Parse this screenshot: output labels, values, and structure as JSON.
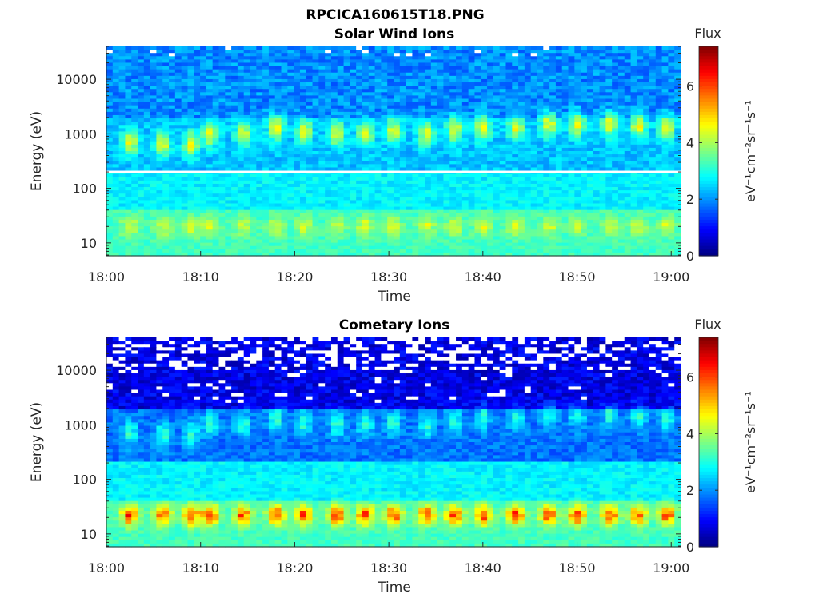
{
  "figure": {
    "title": "RPCICA160615T18.PNG"
  },
  "chart_data": [
    {
      "type": "heatmap",
      "title": "Solar Wind Ions",
      "xlabel": "Time",
      "ylabel": "Energy (eV)",
      "xticks": [
        "18:00",
        "18:10",
        "18:20",
        "18:30",
        "18:40",
        "18:50",
        "19:00"
      ],
      "yticks": [
        "10",
        "100",
        "1000",
        "10000"
      ],
      "yscale": "log",
      "xlim": [
        "18:00",
        "19:01"
      ],
      "ylim": [
        5.8,
        40000
      ],
      "colorbar": {
        "title": "Flux",
        "label": "eV⁻¹cm⁻²sr⁻¹s⁻¹",
        "ticks": [
          "0",
          "2",
          "4",
          "6"
        ],
        "range": [
          0,
          7.4
        ],
        "colormap": "jet"
      },
      "bursts_time_min": [
        2.5,
        6,
        9,
        11,
        14.5,
        18,
        21,
        24.5,
        27.5,
        30.5,
        34,
        37,
        40,
        43.5,
        47,
        50,
        53.5,
        56.5,
        59.5
      ],
      "bursts_energy_ev": [
        700,
        650,
        650,
        1000,
        1000,
        1300,
        1100,
        1000,
        1000,
        1100,
        1000,
        1200,
        1300,
        1300,
        1500,
        1500,
        1500,
        1400,
        1300
      ],
      "low_energy_peak_ev": 20,
      "low_energy_peak_flux": 4.3,
      "background_flux_high_energy": 1.5,
      "gap_energy_ev": 200
    },
    {
      "type": "heatmap",
      "title": "Cometary Ions",
      "xlabel": "Time",
      "ylabel": "Energy (eV)",
      "xticks": [
        "18:00",
        "18:10",
        "18:20",
        "18:30",
        "18:40",
        "18:50",
        "19:00"
      ],
      "yticks": [
        "10",
        "100",
        "1000",
        "10000"
      ],
      "yscale": "log",
      "xlim": [
        "18:00",
        "19:01"
      ],
      "ylim": [
        5.8,
        40000
      ],
      "colorbar": {
        "title": "Flux",
        "label": "eV⁻¹cm⁻²sr⁻¹s⁻¹",
        "ticks": [
          "0",
          "2",
          "4",
          "6"
        ],
        "range": [
          0,
          7.4
        ],
        "colormap": "jet"
      },
      "bursts_time_min": [
        2.5,
        6,
        9,
        11,
        14.5,
        18,
        21,
        24.5,
        27.5,
        30.5,
        34,
        37,
        40,
        43.5,
        47,
        50,
        53.5,
        56.5,
        59.5
      ],
      "bursts_energy_ev": [
        700,
        650,
        650,
        1000,
        1000,
        1300,
        1100,
        1000,
        1000,
        1100,
        1000,
        1200,
        1300,
        1300,
        1500,
        1500,
        1500,
        1400,
        1300
      ],
      "low_energy_peak_ev": 22,
      "low_energy_peak_flux": 6.0,
      "background_flux_high_energy": 0.9
    }
  ]
}
